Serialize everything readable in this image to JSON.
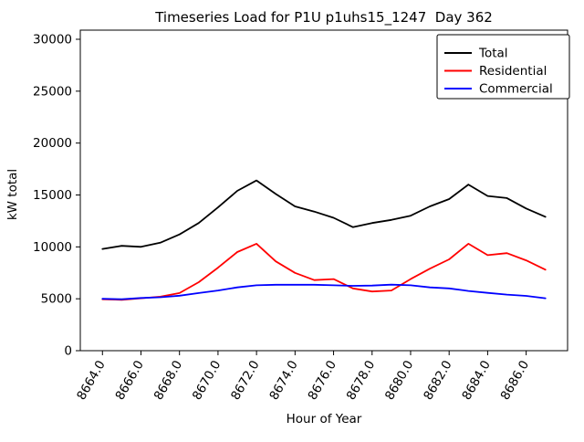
{
  "chart_data": {
    "type": "line",
    "title": "Timeseries Load for P1U p1uhs15_1247  Day 362",
    "xlabel": "Hour of Year",
    "ylabel": "kW total",
    "grid": false,
    "legend_position": "upper right",
    "xlim": [
      8662.85,
      8688.15
    ],
    "ylim": [
      0,
      30880
    ],
    "yticks": [
      0,
      5000,
      10000,
      15000,
      20000,
      25000,
      30000
    ],
    "ytick_labels": [
      "0",
      "5000",
      "10000",
      "15000",
      "20000",
      "25000",
      "30000"
    ],
    "xticks": [
      8664,
      8666,
      8668,
      8670,
      8672,
      8674,
      8676,
      8678,
      8680,
      8682,
      8684,
      8686
    ],
    "xtick_labels": [
      "8664.0",
      "8666.0",
      "8668.0",
      "8670.0",
      "8672.0",
      "8674.0",
      "8676.0",
      "8678.0",
      "8680.0",
      "8682.0",
      "8684.0",
      "8686.0"
    ],
    "x": [
      8664,
      8665,
      8666,
      8667,
      8668,
      8669,
      8670,
      8671,
      8672,
      8673,
      8674,
      8675,
      8676,
      8677,
      8678,
      8679,
      8680,
      8681,
      8682,
      8683,
      8684,
      8685,
      8686,
      8687
    ],
    "series": [
      {
        "name": "Total",
        "color": "#000000",
        "values": [
          9800,
          10100,
          10000,
          10400,
          11200,
          12300,
          13800,
          15400,
          16400,
          15100,
          13900,
          13400,
          12800,
          11900,
          12300,
          12600,
          13000,
          13900,
          14600,
          16000,
          14900,
          14700,
          13700,
          12900
        ]
      },
      {
        "name": "Residential",
        "color": "#ff0000",
        "values": [
          4950,
          4900,
          5050,
          5200,
          5550,
          6600,
          8000,
          9500,
          10300,
          8600,
          7500,
          6800,
          6900,
          6000,
          5700,
          5800,
          6900,
          7900,
          8800,
          10300,
          9200,
          9400,
          8700,
          7800
        ]
      },
      {
        "name": "Commercial",
        "color": "#0000ff",
        "values": [
          5000,
          4950,
          5080,
          5150,
          5300,
          5550,
          5800,
          6100,
          6300,
          6350,
          6350,
          6350,
          6300,
          6250,
          6270,
          6360,
          6300,
          6100,
          6000,
          5750,
          5570,
          5400,
          5280,
          5050
        ]
      }
    ]
  }
}
